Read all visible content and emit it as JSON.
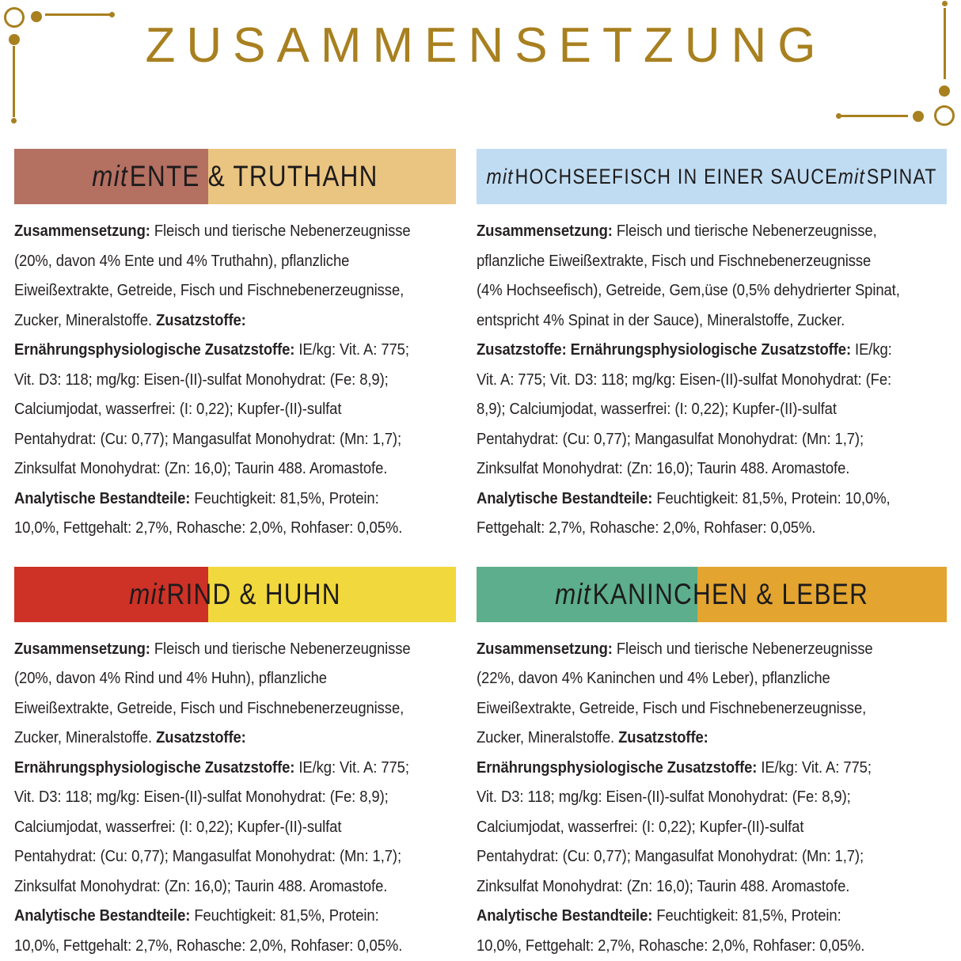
{
  "colors": {
    "gold": "#A8801F",
    "text": "#262224",
    "background": "#FFFFFF"
  },
  "title": "ZUSAMMENSETZUNG",
  "sections": [
    {
      "id": "ente-truthahn",
      "header": {
        "label_runs": [
          {
            "t": "mit ",
            "i": true
          },
          {
            "t": "ENTE & TRUTHAHN"
          }
        ],
        "left_color": "#B47061",
        "right_color": "#EAC581",
        "split": "44%"
      },
      "body_lines": [
        [
          {
            "t": "Zusammensetzung:",
            "b": true
          },
          {
            "t": " Fleisch und tierische Nebenerzeugnisse"
          }
        ],
        [
          {
            "t": "(20%, davon 4% Ente und 4% Truthahn), pflanzliche"
          }
        ],
        [
          {
            "t": "Eiweißextrakte, Getreide, Fisch und Fischnebenerzeugnisse,"
          }
        ],
        [
          {
            "t": "Zucker, Mineralstoffe. "
          },
          {
            "t": "Zusatzstoffe:",
            "b": true
          }
        ],
        [
          {
            "t": "Ernährungsphysiologische Zusatzstoffe:",
            "b": true
          },
          {
            "t": " IE/kg: Vit. A: 775;"
          }
        ],
        [
          {
            "t": "Vit. D3: 118; mg/kg: Eisen-(II)-sulfat Monohydrat: (Fe: 8,9);"
          }
        ],
        [
          {
            "t": "Calciumjodat, wasserfrei: (I: 0,22); Kupfer-(II)-sulfat"
          }
        ],
        [
          {
            "t": "Pentahydrat: (Cu: 0,77); Mangasulfat Monohydrat: (Mn: 1,7);"
          }
        ],
        [
          {
            "t": "Zinksulfat Monohydrat: (Zn: 16,0); Taurin 488. Aromastofe."
          }
        ],
        [
          {
            "t": "Analytische Bestandteile:",
            "b": true
          },
          {
            "t": " Feuchtigkeit: 81,5%, Protein:"
          }
        ],
        [
          {
            "t": "10,0%, Fettgehalt: 2,7%, Rohasche: 2,0%, Rohfaser: 0,05%."
          }
        ]
      ]
    },
    {
      "id": "hochseefisch-spinat",
      "header": {
        "label_runs": [
          {
            "t": "mit ",
            "i": true
          },
          {
            "t": "HOCHSEEFISCH IN EINER SAUCE "
          },
          {
            "t": "mit ",
            "i": true
          },
          {
            "t": "SPINAT"
          }
        ],
        "left_color": "#C0DCF2",
        "right_color": "#C0DCF2",
        "split": "50%"
      },
      "body_lines": [
        [
          {
            "t": "Zusammensetzung:",
            "b": true
          },
          {
            "t": " Fleisch und tierische Nebenerzeugnisse,"
          }
        ],
        [
          {
            "t": "pflanzliche Eiweißextrakte, Fisch und Fischnebenerzeugnisse"
          }
        ],
        [
          {
            "t": "(4% Hochseefisch), Getreide, Gem,üse (0,5% dehydrierter Spinat,"
          }
        ],
        [
          {
            "t": "entspricht 4% Spinat in der Sauce), Mineralstoffe, Zucker."
          }
        ],
        [
          {
            "t": "Zusatzstoffe: Ernährungsphysiologische Zusatzstoffe:",
            "b": true
          },
          {
            "t": " IE/kg:"
          }
        ],
        [
          {
            "t": "Vit. A: 775; Vit. D3: 118; mg/kg: Eisen-(II)-sulfat Monohydrat: (Fe:"
          }
        ],
        [
          {
            "t": "8,9); Calciumjodat, wasserfrei: (I: 0,22); Kupfer-(II)-sulfat"
          }
        ],
        [
          {
            "t": "Pentahydrat: (Cu: 0,77); Mangasulfat Monohydrat: (Mn: 1,7);"
          }
        ],
        [
          {
            "t": "Zinksulfat Monohydrat: (Zn: 16,0); Taurin 488. Aromastofe."
          }
        ],
        [
          {
            "t": "Analytische Bestandteile:",
            "b": true
          },
          {
            "t": " Feuchtigkeit: 81,5%, Protein: 10,0%,"
          }
        ],
        [
          {
            "t": "Fettgehalt: 2,7%, Rohasche: 2,0%, Rohfaser: 0,05%."
          }
        ]
      ]
    },
    {
      "id": "rind-huhn",
      "header": {
        "label_runs": [
          {
            "t": "mit ",
            "i": true
          },
          {
            "t": "RIND & HUHN"
          }
        ],
        "left_color": "#CE3126",
        "right_color": "#F1D83C",
        "split": "44%"
      },
      "body_lines": [
        [
          {
            "t": "Zusammensetzung:",
            "b": true
          },
          {
            "t": " Fleisch und tierische Nebenerzeugnisse"
          }
        ],
        [
          {
            "t": "(20%, davon 4% Rind und 4% Huhn), pflanzliche"
          }
        ],
        [
          {
            "t": "Eiweißextrakte, Getreide, Fisch und Fischnebenerzeugnisse,"
          }
        ],
        [
          {
            "t": "Zucker, Mineralstoffe. "
          },
          {
            "t": "Zusatzstoffe:",
            "b": true
          }
        ],
        [
          {
            "t": "Ernährungsphysiologische Zusatzstoffe:",
            "b": true
          },
          {
            "t": " IE/kg: Vit. A: 775;"
          }
        ],
        [
          {
            "t": "Vit. D3: 118; mg/kg: Eisen-(II)-sulfat Monohydrat: (Fe: 8,9);"
          }
        ],
        [
          {
            "t": "Calciumjodat, wasserfrei: (I: 0,22); Kupfer-(II)-sulfat"
          }
        ],
        [
          {
            "t": "Pentahydrat: (Cu: 0,77); Mangasulfat Monohydrat: (Mn: 1,7);"
          }
        ],
        [
          {
            "t": "Zinksulfat Monohydrat: (Zn: 16,0); Taurin 488. Aromastofe."
          }
        ],
        [
          {
            "t": "Analytische Bestandteile:",
            "b": true
          },
          {
            "t": " Feuchtigkeit: 81,5%, Protein:"
          }
        ],
        [
          {
            "t": "10,0%, Fettgehalt: 2,7%, Rohasche: 2,0%, Rohfaser: 0,05%."
          }
        ]
      ]
    },
    {
      "id": "kaninchen-leber",
      "header": {
        "label_runs": [
          {
            "t": "mit ",
            "i": true
          },
          {
            "t": "KANINCHEN & LEBER"
          }
        ],
        "left_color": "#5CAE8C",
        "right_color": "#E3A52F",
        "split": "47%"
      },
      "body_lines": [
        [
          {
            "t": "Zusammensetzung:",
            "b": true
          },
          {
            "t": " Fleisch und tierische Nebenerzeugnisse"
          }
        ],
        [
          {
            "t": "(22%, davon 4% Kaninchen und 4% Leber), pflanzliche"
          }
        ],
        [
          {
            "t": "Eiweißextrakte, Getreide, Fisch und Fischnebenerzeugnisse,"
          }
        ],
        [
          {
            "t": "Zucker, Mineralstoffe. "
          },
          {
            "t": "Zusatzstoffe:",
            "b": true
          }
        ],
        [
          {
            "t": "Ernährungsphysiologische Zusatzstoffe:",
            "b": true
          },
          {
            "t": " IE/kg: Vit. A: 775;"
          }
        ],
        [
          {
            "t": "Vit. D3: 118; mg/kg: Eisen-(II)-sulfat Monohydrat: (Fe: 8,9);"
          }
        ],
        [
          {
            "t": "Calciumjodat, wasserfrei: (I: 0,22); Kupfer-(II)-sulfat"
          }
        ],
        [
          {
            "t": "Pentahydrat: (Cu: 0,77); Mangasulfat Monohydrat: (Mn: 1,7);"
          }
        ],
        [
          {
            "t": "Zinksulfat Monohydrat: (Zn: 16,0); Taurin 488. Aromastofe."
          }
        ],
        [
          {
            "t": "Analytische Bestandteile:",
            "b": true
          },
          {
            "t": " Feuchtigkeit: 81,5%, Protein:"
          }
        ],
        [
          {
            "t": "10,0%, Fettgehalt: 2,7%, Rohasche: 2,0%, Rohfaser: 0,05%."
          }
        ]
      ]
    }
  ]
}
